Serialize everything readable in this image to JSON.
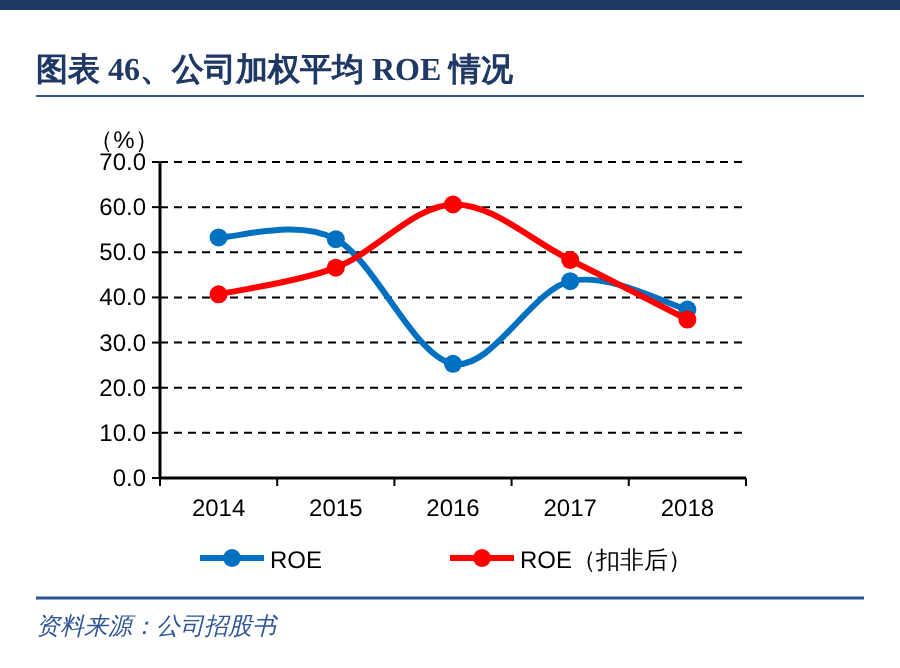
{
  "chart_data": {
    "type": "line",
    "title": "图表 46、公司加权平均 ROE 情况",
    "ylabel": "（%）",
    "categories": [
      "2014",
      "2015",
      "2016",
      "2017",
      "2018"
    ],
    "series": [
      {
        "name": "ROE",
        "color": "#0070c0",
        "values": [
          53.3,
          52.9,
          25.3,
          43.6,
          37.3
        ]
      },
      {
        "name": "ROE（扣非后）",
        "color": "#ff0000",
        "values": [
          40.7,
          46.6,
          60.6,
          48.3,
          35.1
        ]
      }
    ],
    "ylim": [
      0,
      70
    ],
    "yticks": [
      {
        "value": 0,
        "label": "0.0"
      },
      {
        "value": 10,
        "label": "10.0"
      },
      {
        "value": 20,
        "label": "20.0"
      },
      {
        "value": 30,
        "label": "30.0"
      },
      {
        "value": 40,
        "label": "40.0"
      },
      {
        "value": 50,
        "label": "50.0"
      },
      {
        "value": 60,
        "label": "60.0"
      },
      {
        "value": 70,
        "label": "70.0"
      }
    ],
    "grid": "y",
    "legend": "bottom",
    "marker": "circle",
    "line_style": "solid",
    "annotations": [
      "资料来源：公司招股书"
    ]
  }
}
